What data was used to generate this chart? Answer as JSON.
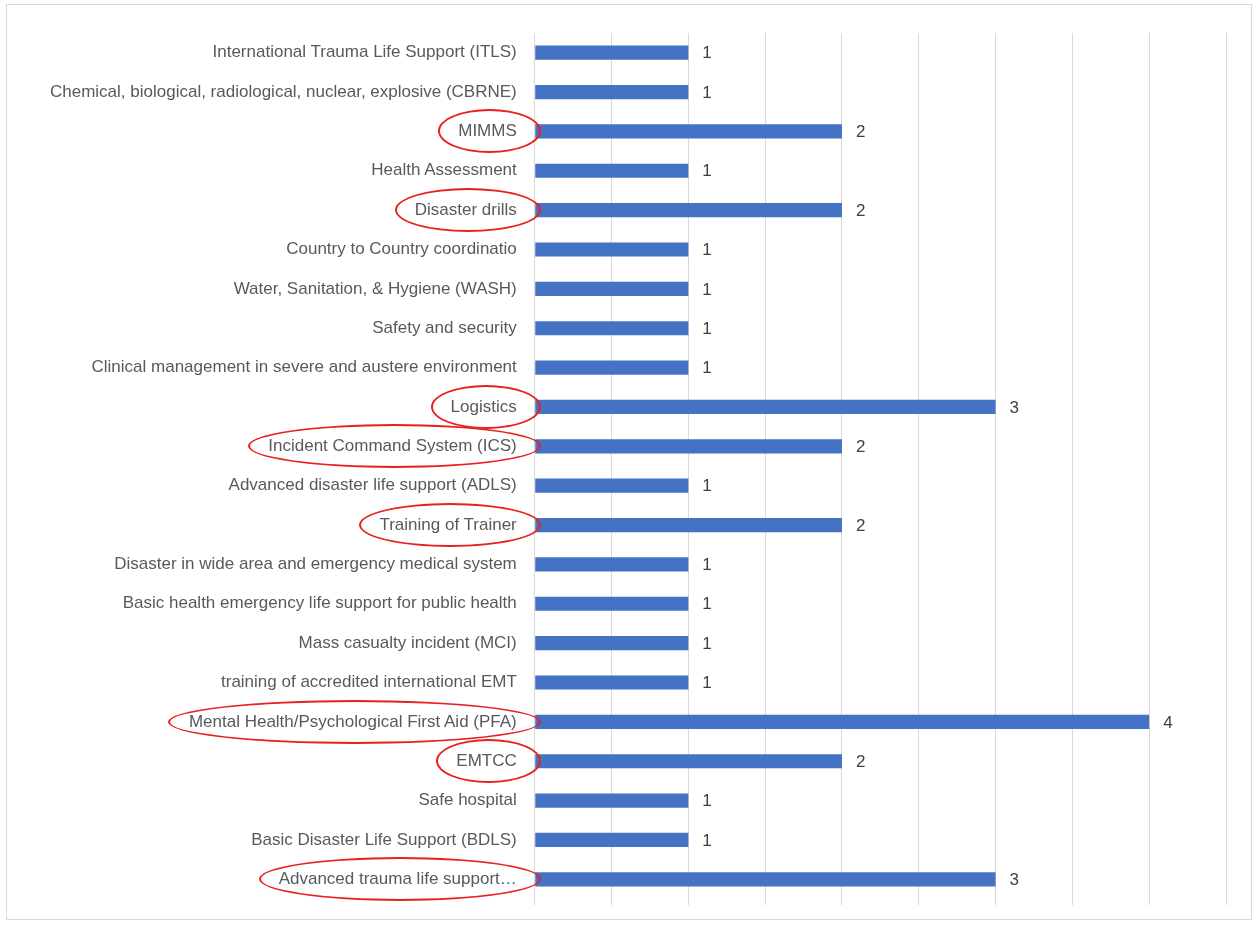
{
  "chart_data": {
    "type": "bar",
    "orientation": "horizontal",
    "categories": [
      "International Trauma Life Support (ITLS)",
      "Chemical, biological, radiological, nuclear, explosive (CBRNE)",
      "MIMMS",
      "Health Assessment",
      "Disaster drills",
      "Country to Country coordinatio",
      "Water, Sanitation, & Hygiene (WASH)",
      "Safety and security",
      "Clinical management in severe and austere environment",
      "Logistics",
      "Incident Command System (ICS)",
      "Advanced disaster life support (ADLS)",
      "Training of Trainer",
      "Disaster in wide area and emergency medical system",
      "Basic health emergency life support for public health",
      "Mass casualty incident (MCI)",
      "training of accredited international EMT",
      "Mental Health/Psychological First Aid (PFA)",
      "EMTCC",
      "Safe hospital",
      "Basic Disaster Life Support (BDLS)",
      "Advanced trauma life support…"
    ],
    "values": [
      1,
      1,
      2,
      1,
      2,
      1,
      1,
      1,
      1,
      3,
      2,
      1,
      2,
      1,
      1,
      1,
      1,
      4,
      2,
      1,
      1,
      3
    ],
    "color": "#4472c4",
    "xlim": [
      0,
      4.5
    ],
    "xticks": [
      {
        "value": 0,
        "label": null
      },
      {
        "value": 0.5,
        "label": null
      },
      {
        "value": 1,
        "label": null
      },
      {
        "value": 1.5,
        "label": null
      },
      {
        "value": 2,
        "label": null
      },
      {
        "value": 2.5,
        "label": null
      },
      {
        "value": 3,
        "label": null
      },
      {
        "value": 3.5,
        "label": null
      },
      {
        "value": 4,
        "label": null
      },
      {
        "value": 4.5,
        "label": null
      }
    ],
    "tick_labels": "y",
    "grid": "x",
    "data_labels": true
  }
}
